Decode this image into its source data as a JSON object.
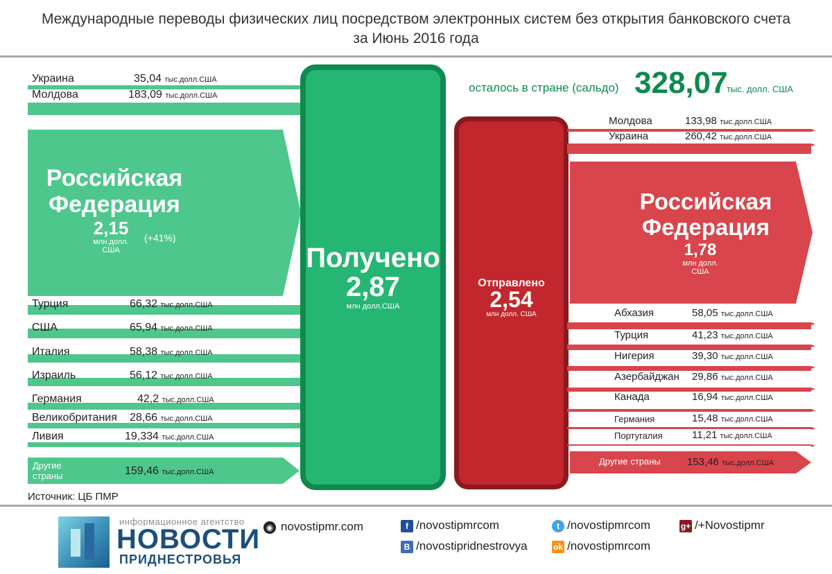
{
  "title": {
    "line1": "Международные переводы физических лиц посредством электронных систем без открытия банковского счета",
    "line2": "за Июнь 2016 года"
  },
  "received": {
    "label": "Получено",
    "value": "2,87",
    "unit": "млн долл.США",
    "countries": [
      {
        "name": "Украина",
        "value": "35,04",
        "unit": "тыс.долл.США"
      },
      {
        "name": "Молдова",
        "value": "183,09",
        "unit": "тыс.долл.США"
      }
    ],
    "russia": {
      "name_l1": "Российская",
      "name_l2": "Федерация",
      "value": "2,15",
      "unit_l1": "млн.долл.",
      "unit_l2": "США",
      "change": "(+41%)"
    },
    "countries2": [
      {
        "name": "Турция",
        "value": "66,32",
        "unit": "тыс.долл.США"
      },
      {
        "name": "США",
        "value": "65,94",
        "unit": "тыс.долл.США"
      },
      {
        "name": "Италия",
        "value": "58,38",
        "unit": "тыс.долл.США"
      },
      {
        "name": "Израиль",
        "value": "56,12",
        "unit": "тыс.долл.США"
      },
      {
        "name": "Германия",
        "value": "42,2",
        "unit": "тыс.долл.США"
      },
      {
        "name": "Великобритания",
        "value": "28,66",
        "unit": "тыс.долл.США"
      },
      {
        "name": "Ливия",
        "value": "19,334",
        "unit": "тыс.долл.США"
      }
    ],
    "other": {
      "name_l1": "Другие",
      "name_l2": "страны",
      "value": "159,46",
      "unit": "тыс.долл.США"
    }
  },
  "sent": {
    "label": "Отправлено",
    "value": "2,54",
    "unit": "млн долл. США",
    "countries": [
      {
        "name": "Молдова",
        "value": "133,98",
        "unit": "тыс.долл.США"
      },
      {
        "name": "Украина",
        "value": "260,42",
        "unit": "тыс.долл.США"
      }
    ],
    "russia": {
      "name_l1": "Российская",
      "name_l2": "Федерация",
      "value": "1,78",
      "unit_l1": "млн долл.",
      "unit_l2": "США"
    },
    "countries2": [
      {
        "name": "Абхазия",
        "value": "58,05",
        "unit": "тыс.долл.США"
      },
      {
        "name": "Турция",
        "value": "41,23",
        "unit": "тыс.долл.США"
      },
      {
        "name": "Нигерия",
        "value": "39,30",
        "unit": "тыс.долл.США"
      },
      {
        "name": "Азербайджан",
        "value": "29,86",
        "unit": "тыс.долл.США"
      },
      {
        "name": "Канада",
        "value": "16,94",
        "unit": "тыс.долл.США"
      },
      {
        "name": "Германия",
        "value": "15,48",
        "unit": "тыс.долл.США"
      },
      {
        "name": "Португалия",
        "value": "11,21",
        "unit": "тыс.долл.США"
      }
    ],
    "other": {
      "name": "Другие страны",
      "value": "153,46",
      "unit": "тыс.долл.США"
    }
  },
  "balance": {
    "label": "осталось в стране (сальдо)",
    "value": "328,07",
    "unit": "тыс. долл. США"
  },
  "source": "Источник: ЦБ ПМР",
  "footer": {
    "agency_small": "информационное агентство",
    "agency_big": "НОВОСТИ",
    "agency_sub": "ПРИДНЕСТРОВЬЯ",
    "site": "novostipmr.com",
    "facebook": "/novostipmrcom",
    "vk": "/novostipridnestrovya",
    "twitter": "/novostipmrcom",
    "odnoklassniki": "/novostipmrcom",
    "googleplus": "/+Novostipmr",
    "icons": {
      "site": "globe-icon",
      "facebook": "facebook-icon",
      "vk": "vk-icon",
      "twitter": "twitter-icon",
      "odnoklassniki": "odnoklassniki-icon",
      "googleplus": "googleplus-icon"
    }
  },
  "colors": {
    "green": "#4ec78d",
    "green_dark": "#0e8a4e",
    "red": "#d9454c",
    "red_dark": "#8b1a1f"
  }
}
